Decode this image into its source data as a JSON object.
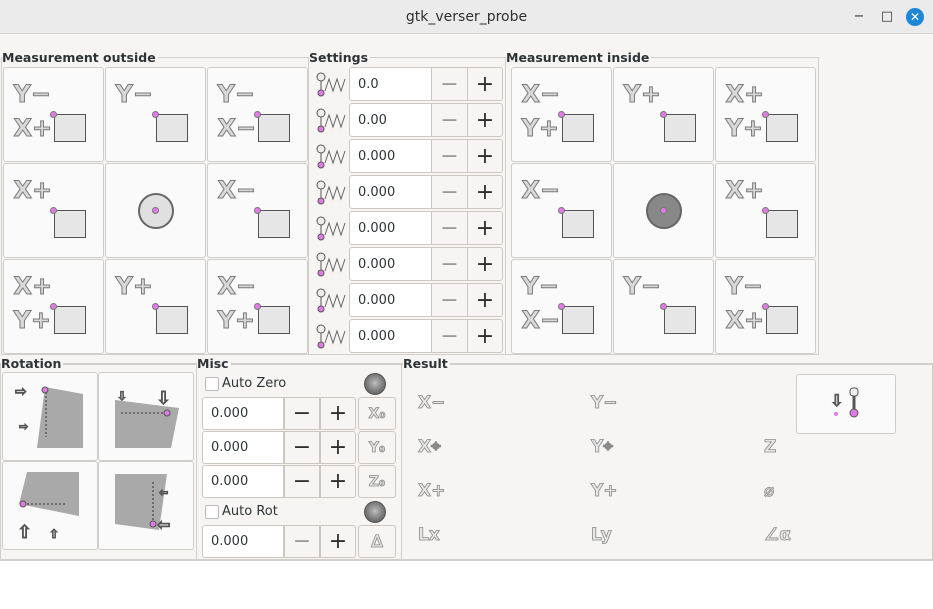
{
  "window": {
    "title": "gtk_verser_probe",
    "minimize": "−",
    "maximize": "□",
    "close": "✕"
  },
  "outside": {
    "label": "Measurement outside",
    "cells": [
      {
        "a": "Y−",
        "b": "X+"
      },
      {
        "a": "Y−",
        "b": ""
      },
      {
        "a": "Y−",
        "b": "X−"
      },
      {
        "a": "X+",
        "b": ""
      },
      {
        "a": "",
        "b": ""
      },
      {
        "a": "X−",
        "b": ""
      },
      {
        "a": "X+",
        "b": "Y+"
      },
      {
        "a": "Y+",
        "b": ""
      },
      {
        "a": "X−",
        "b": "Y+"
      }
    ]
  },
  "settings": {
    "label": "Settings",
    "minus": "−",
    "plus": "+",
    "rows": [
      {
        "icon": "probe-fast-feed-icon",
        "value": "0.0"
      },
      {
        "icon": "probe-slow-feed-icon",
        "value": "0.00"
      },
      {
        "icon": "probe-travel-icon",
        "value": "0.000"
      },
      {
        "icon": "probe-latch-icon",
        "value": "0.000"
      },
      {
        "icon": "probe-diameter-icon",
        "value": "0.000"
      },
      {
        "icon": "xy-clearance-icon",
        "value": "0.000"
      },
      {
        "icon": "edge-length-icon",
        "value": "0.000"
      },
      {
        "icon": "z-clearance-icon",
        "value": "0.000"
      }
    ]
  },
  "inside": {
    "label": "Measurement inside",
    "cells": [
      {
        "a": "X−",
        "b": "Y+"
      },
      {
        "a": "Y+",
        "b": ""
      },
      {
        "a": "X+",
        "b": "Y+"
      },
      {
        "a": "X−",
        "b": ""
      },
      {
        "a": "",
        "b": ""
      },
      {
        "a": "X+",
        "b": ""
      },
      {
        "a": "Y−",
        "b": "X−"
      },
      {
        "a": "Y−",
        "b": ""
      },
      {
        "a": "Y−",
        "b": "X+"
      }
    ]
  },
  "rotation": {
    "label": "Rotation"
  },
  "misc": {
    "label": "Misc",
    "auto_zero": "Auto Zero",
    "auto_rot": "Auto Rot",
    "minus": "−",
    "plus": "+",
    "rows": [
      {
        "value": "0.000",
        "zero": "X₀"
      },
      {
        "value": "0.000",
        "zero": "Y₀"
      },
      {
        "value": "0.000",
        "zero": "Z₀"
      }
    ],
    "rot_value": "0.000",
    "rot_btn": "∆"
  },
  "result": {
    "label": "Result",
    "items": [
      "X−",
      "Y−",
      "",
      "X⌖",
      "Y⌖",
      "Z",
      "X+",
      "Y+",
      "⌀",
      "Lx",
      "Ly",
      "∠α"
    ]
  },
  "colors": {
    "probe_point": "#e27ae6",
    "close": "#1e87d6"
  }
}
